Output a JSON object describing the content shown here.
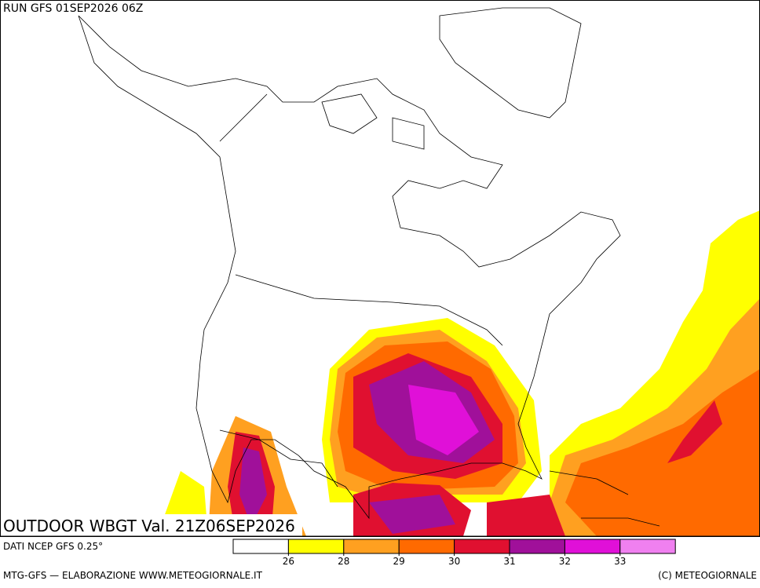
{
  "header": {
    "run": "RUN GFS 01SEP2026 06Z"
  },
  "map": {
    "title": "OUTDOOR WBGT Val. 21Z06SEP2026"
  },
  "legend": {
    "source": "DATI NCEP GFS 0.25°",
    "colors": [
      "#ffffff",
      "#ffff00",
      "#ffa020",
      "#ff6a00",
      "#e01030",
      "#a0109a",
      "#e010d8",
      "#f080f0"
    ],
    "ticks": [
      26,
      28,
      29,
      30,
      31,
      32,
      33
    ]
  },
  "footer": {
    "left": "MTG-GFS — ELABORAZIONE WWW.METEOGIORNALE.IT",
    "right": "(C) METEOGIORNALE"
  }
}
